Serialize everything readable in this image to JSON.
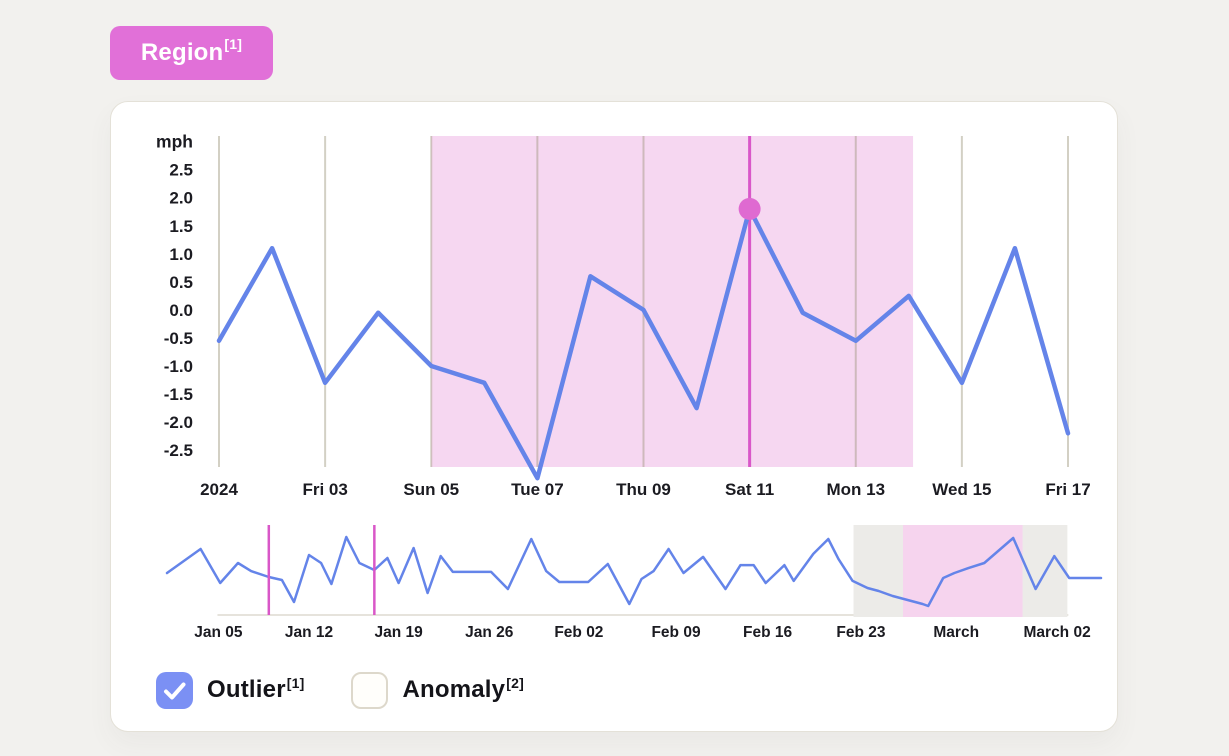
{
  "region_button": {
    "label": "Region",
    "superscript": "[1]"
  },
  "checkboxes": {
    "outlier": {
      "label": "Outlier",
      "superscript": "[1]",
      "checked": true
    },
    "anomaly": {
      "label": "Anomaly",
      "superscript": "[2]",
      "checked": false
    }
  },
  "colors": {
    "series_blue": "#6484e9",
    "checkbox_blue": "#7b90f4",
    "magenta_marker": "#d957c8",
    "outlier_dot": "#df6ad1",
    "region_pink_fill": "#f6d7f1",
    "mini_region_pink": "#f6d4ee",
    "mini_selection_gray": "#ecebe8",
    "gridline": "rgba(150,142,115,0.42)",
    "baseline": "#e6e3dc",
    "axis_text": "#1b1b21",
    "region_button_bg": "#e170d8"
  },
  "chart_data": [
    {
      "id": "main",
      "type": "line",
      "title": "",
      "ylabel": "mph",
      "x_tick_labels": [
        "2024",
        "Fri 03",
        "Sun 05",
        "Tue 07",
        "Thu 09",
        "Sat 11",
        "Mon 13",
        "Wed 15",
        "Fri 17"
      ],
      "x_tick_day_positions": [
        0,
        2,
        4,
        6,
        8,
        10,
        12,
        14,
        16
      ],
      "x_days": [
        "Jan 01",
        "Jan 02",
        "Jan 03",
        "Jan 04",
        "Jan 05",
        "Jan 06",
        "Jan 07",
        "Jan 08",
        "Jan 09",
        "Jan 10",
        "Jan 11",
        "Jan 12",
        "Jan 13",
        "Jan 14",
        "Jan 15",
        "Jan 16",
        "Jan 17"
      ],
      "values": [
        -0.55,
        1.1,
        -1.3,
        -0.05,
        -1.0,
        -1.3,
        -3.0,
        0.6,
        0.0,
        -1.75,
        1.8,
        -0.05,
        -0.55,
        0.25,
        -1.3,
        1.1,
        -2.2
      ],
      "y_tick_labels": [
        "2.5",
        "2.0",
        "1.5",
        "1.0",
        "0.5",
        "0.0",
        "-0.5",
        "-1.0",
        "-1.5",
        "-2.0",
        "-2.5"
      ],
      "ylim": [
        -2.8,
        3.1
      ],
      "grid": "vertical-only",
      "highlight_region": {
        "from_day": 4,
        "to_day": 13.08,
        "annotation": "Region[1]"
      },
      "outlier_marker": {
        "day": 10,
        "value": 1.8,
        "annotation": "Outlier[1]"
      }
    },
    {
      "id": "overview",
      "type": "line",
      "title": "",
      "ylim": [
        -3,
        3
      ],
      "x_ticks": [
        {
          "pos": 0.055,
          "label": "Jan 05"
        },
        {
          "pos": 0.152,
          "label": "Jan 12"
        },
        {
          "pos": 0.248,
          "label": "Jan 19"
        },
        {
          "pos": 0.345,
          "label": "Jan 26"
        },
        {
          "pos": 0.441,
          "label": "Feb 02"
        },
        {
          "pos": 0.545,
          "label": "Feb 09"
        },
        {
          "pos": 0.643,
          "label": "Feb 16"
        },
        {
          "pos": 0.743,
          "label": "Feb 23"
        },
        {
          "pos": 0.845,
          "label": "March"
        },
        {
          "pos": 0.953,
          "label": "March 02"
        }
      ],
      "marker_lines": [
        0.109,
        0.222
      ],
      "selection_window": {
        "from": 0.735,
        "to": 0.964
      },
      "highlight_region": {
        "from": 0.788,
        "to": 0.916
      },
      "points": [
        [
          0.0,
          -0.2
        ],
        [
          0.036,
          1.4
        ],
        [
          0.057,
          -0.87
        ],
        [
          0.076,
          0.47
        ],
        [
          0.09,
          -0.07
        ],
        [
          0.109,
          -0.47
        ],
        [
          0.123,
          -0.67
        ],
        [
          0.136,
          -2.13
        ],
        [
          0.152,
          1.0
        ],
        [
          0.165,
          0.47
        ],
        [
          0.176,
          -0.93
        ],
        [
          0.192,
          2.2
        ],
        [
          0.206,
          0.47
        ],
        [
          0.222,
          0.0
        ],
        [
          0.236,
          0.8
        ],
        [
          0.248,
          -0.87
        ],
        [
          0.264,
          1.47
        ],
        [
          0.279,
          -1.53
        ],
        [
          0.293,
          0.93
        ],
        [
          0.306,
          -0.13
        ],
        [
          0.347,
          -0.13
        ],
        [
          0.365,
          -1.27
        ],
        [
          0.39,
          2.07
        ],
        [
          0.406,
          -0.07
        ],
        [
          0.42,
          -0.8
        ],
        [
          0.451,
          -0.8
        ],
        [
          0.472,
          0.4
        ],
        [
          0.495,
          -2.27
        ],
        [
          0.508,
          -0.6
        ],
        [
          0.521,
          -0.07
        ],
        [
          0.537,
          1.4
        ],
        [
          0.553,
          -0.2
        ],
        [
          0.574,
          0.87
        ],
        [
          0.598,
          -1.27
        ],
        [
          0.614,
          0.33
        ],
        [
          0.628,
          0.33
        ],
        [
          0.641,
          -0.87
        ],
        [
          0.661,
          0.33
        ],
        [
          0.671,
          -0.73
        ],
        [
          0.692,
          1.07
        ],
        [
          0.708,
          2.07
        ],
        [
          0.719,
          0.73
        ],
        [
          0.734,
          -0.73
        ],
        [
          0.75,
          -1.2
        ],
        [
          0.762,
          -1.4
        ],
        [
          0.777,
          -1.73
        ],
        [
          0.809,
          -2.27
        ],
        [
          0.815,
          -2.4
        ],
        [
          0.831,
          -0.53
        ],
        [
          0.843,
          -0.2
        ],
        [
          0.858,
          0.13
        ],
        [
          0.875,
          0.47
        ],
        [
          0.906,
          2.13
        ],
        [
          0.93,
          -1.27
        ],
        [
          0.95,
          0.93
        ],
        [
          0.966,
          -0.53
        ],
        [
          1.0,
          -0.53
        ]
      ]
    }
  ]
}
